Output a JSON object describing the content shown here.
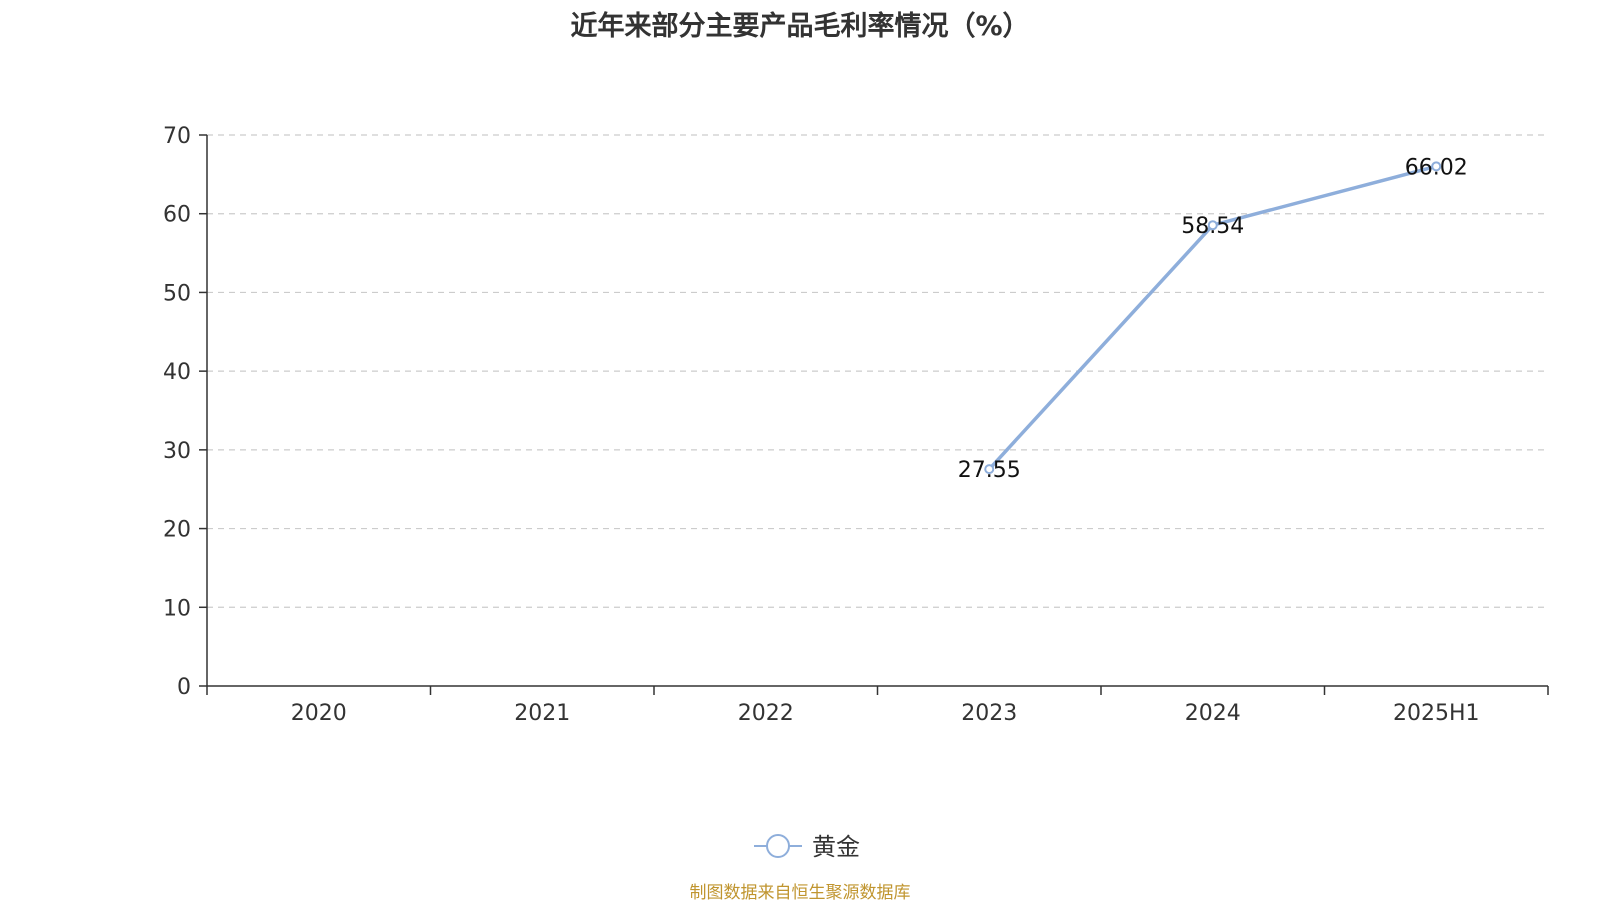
{
  "chart_data": {
    "type": "line",
    "title": "近年来部分主要产品毛利率情况（%）",
    "categories": [
      "2020",
      "2021",
      "2022",
      "2023",
      "2024",
      "2025H1"
    ],
    "series": [
      {
        "name": "黄金",
        "values": [
          null,
          null,
          null,
          27.55,
          58.54,
          66.02
        ],
        "color": "#8eaedb"
      }
    ],
    "ylim": [
      0,
      70
    ],
    "yticks": [
      0,
      10,
      20,
      30,
      40,
      50,
      60,
      70
    ],
    "xlabel": "",
    "ylabel": "",
    "grid": "horizontal-dashed",
    "legend_position": "bottom-center"
  },
  "footer": {
    "source": "制图数据来自恒生聚源数据库"
  }
}
